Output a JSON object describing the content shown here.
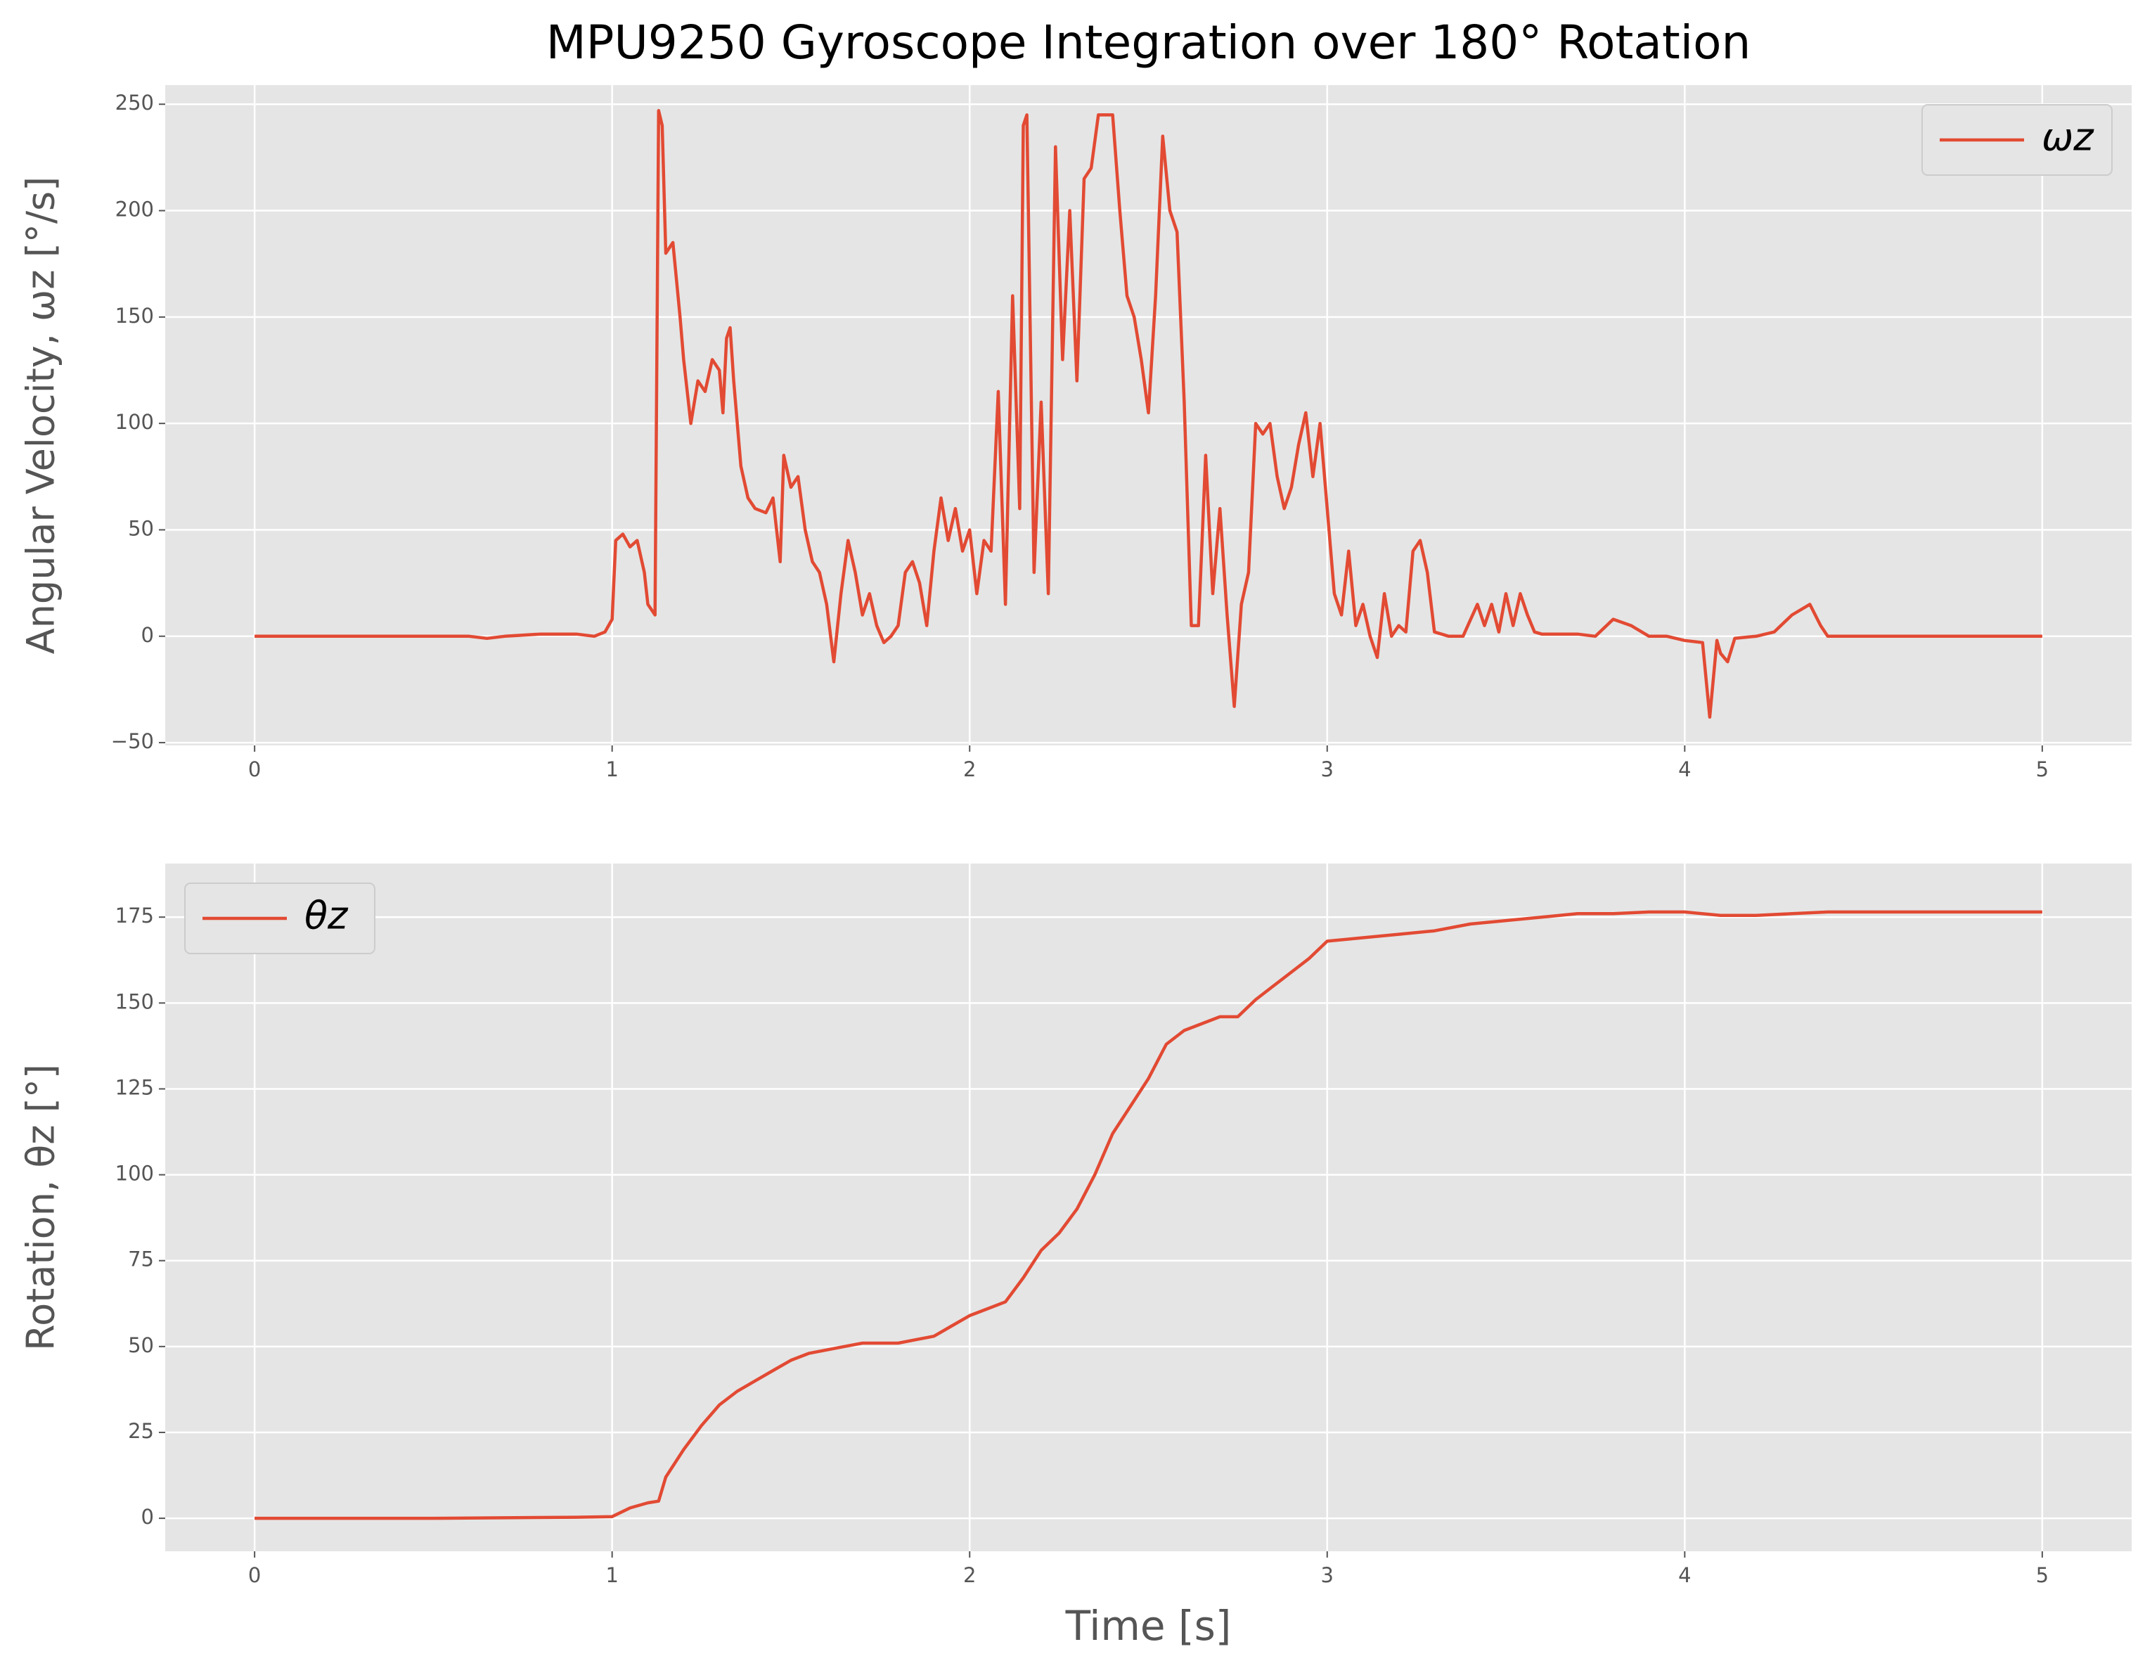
{
  "chart_data": [
    {
      "type": "line",
      "title": "MPU9250 Gyroscope Integration over 180° Rotation",
      "ylabel": "Angular Velocity, ωz [°/s]",
      "x": [
        0,
        0.1,
        0.2,
        0.3,
        0.4,
        0.5,
        0.6,
        0.65,
        0.7,
        0.8,
        0.9,
        0.95,
        0.98,
        1.0,
        1.01,
        1.03,
        1.05,
        1.07,
        1.09,
        1.1,
        1.12,
        1.13,
        1.14,
        1.15,
        1.17,
        1.19,
        1.2,
        1.22,
        1.24,
        1.26,
        1.28,
        1.3,
        1.31,
        1.32,
        1.33,
        1.34,
        1.36,
        1.38,
        1.4,
        1.43,
        1.45,
        1.47,
        1.48,
        1.5,
        1.52,
        1.54,
        1.56,
        1.58,
        1.6,
        1.62,
        1.64,
        1.66,
        1.68,
        1.7,
        1.72,
        1.74,
        1.76,
        1.78,
        1.8,
        1.82,
        1.84,
        1.86,
        1.88,
        1.9,
        1.92,
        1.94,
        1.96,
        1.98,
        2.0,
        2.02,
        2.04,
        2.06,
        2.08,
        2.1,
        2.12,
        2.14,
        2.15,
        2.16,
        2.18,
        2.2,
        2.22,
        2.24,
        2.26,
        2.28,
        2.3,
        2.32,
        2.34,
        2.36,
        2.38,
        2.4,
        2.42,
        2.44,
        2.46,
        2.48,
        2.5,
        2.52,
        2.54,
        2.56,
        2.58,
        2.6,
        2.62,
        2.64,
        2.66,
        2.68,
        2.7,
        2.72,
        2.74,
        2.76,
        2.78,
        2.8,
        2.82,
        2.84,
        2.86,
        2.88,
        2.9,
        2.92,
        2.94,
        2.96,
        2.98,
        3.0,
        3.02,
        3.04,
        3.06,
        3.08,
        3.1,
        3.12,
        3.14,
        3.16,
        3.18,
        3.2,
        3.22,
        3.24,
        3.26,
        3.28,
        3.3,
        3.34,
        3.38,
        3.42,
        3.44,
        3.46,
        3.48,
        3.5,
        3.52,
        3.54,
        3.56,
        3.58,
        3.6,
        3.7,
        3.75,
        3.8,
        3.85,
        3.9,
        3.95,
        4.0,
        4.05,
        4.07,
        4.09,
        4.1,
        4.12,
        4.14,
        4.2,
        4.25,
        4.3,
        4.35,
        4.38,
        4.4,
        4.5,
        4.6,
        4.7,
        4.8,
        4.9,
        5.0
      ],
      "series": [
        {
          "name": "ωz",
          "color": "#E24A33",
          "values": [
            0,
            0,
            0,
            0,
            0,
            0,
            0,
            -1,
            0,
            1,
            1,
            0,
            2,
            8,
            45,
            48,
            42,
            45,
            30,
            15,
            10,
            247,
            240,
            180,
            185,
            150,
            130,
            100,
            120,
            115,
            130,
            125,
            105,
            140,
            145,
            120,
            80,
            65,
            60,
            58,
            65,
            35,
            85,
            70,
            75,
            50,
            35,
            30,
            15,
            -12,
            20,
            45,
            30,
            10,
            20,
            5,
            -3,
            0,
            5,
            30,
            35,
            25,
            5,
            40,
            65,
            45,
            60,
            40,
            50,
            20,
            45,
            40,
            115,
            15,
            160,
            60,
            240,
            245,
            30,
            110,
            20,
            230,
            130,
            200,
            120,
            215,
            220,
            245,
            245,
            245,
            200,
            160,
            150,
            130,
            105,
            160,
            235,
            200,
            190,
            110,
            5,
            5,
            85,
            20,
            60,
            10,
            -33,
            15,
            30,
            100,
            95,
            100,
            75,
            60,
            70,
            90,
            105,
            75,
            100,
            60,
            20,
            10,
            40,
            5,
            15,
            0,
            -10,
            20,
            0,
            5,
            2,
            40,
            45,
            30,
            2,
            0,
            0,
            15,
            5,
            15,
            2,
            20,
            5,
            20,
            10,
            2,
            1,
            1,
            0,
            8,
            5,
            0,
            0,
            -2,
            -3,
            -38,
            -2,
            -8,
            -12,
            -1,
            0,
            2,
            10,
            15,
            5,
            0,
            0,
            0,
            0,
            0,
            0,
            0
          ]
        }
      ],
      "xlim": [
        -0.25,
        5.25
      ],
      "xticks": [
        0,
        1,
        2,
        3,
        4,
        5
      ],
      "ylim": [
        -51.3,
        259
      ],
      "yticks": [
        {
          "value": -50,
          "label": "−50"
        },
        0,
        50,
        100,
        150,
        200,
        250
      ],
      "grid": true,
      "legend": "upper right"
    },
    {
      "type": "line",
      "xlabel": "Time [s]",
      "ylabel": "Rotation, θz [°]",
      "x": [
        0,
        0.5,
        0.9,
        1.0,
        1.05,
        1.1,
        1.13,
        1.15,
        1.2,
        1.25,
        1.3,
        1.35,
        1.4,
        1.45,
        1.5,
        1.55,
        1.6,
        1.65,
        1.7,
        1.8,
        1.85,
        1.9,
        1.95,
        2.0,
        2.05,
        2.1,
        2.15,
        2.2,
        2.25,
        2.3,
        2.35,
        2.4,
        2.45,
        2.5,
        2.55,
        2.6,
        2.65,
        2.7,
        2.75,
        2.8,
        2.85,
        2.9,
        2.95,
        3.0,
        3.1,
        3.2,
        3.3,
        3.4,
        3.5,
        3.6,
        3.7,
        3.8,
        3.9,
        4.0,
        4.1,
        4.2,
        4.3,
        4.4,
        4.6,
        5.0
      ],
      "series": [
        {
          "name": "θz",
          "color": "#E24A33",
          "values": [
            0,
            0,
            0.3,
            0.5,
            3,
            4.5,
            5,
            12,
            20,
            27,
            33,
            37,
            40,
            43,
            46,
            48,
            49,
            50,
            51,
            51,
            52,
            53,
            56,
            59,
            61,
            63,
            70,
            78,
            83,
            90,
            100,
            112,
            120,
            128,
            138,
            142,
            144,
            146,
            146,
            151,
            155,
            159,
            163,
            168,
            169,
            170,
            171,
            173,
            174,
            175,
            176,
            176,
            176.5,
            176.5,
            175.5,
            175.5,
            176,
            176.5,
            176.5,
            176.5
          ]
        }
      ],
      "xlim": [
        -0.25,
        5.25
      ],
      "xticks": [
        0,
        1,
        2,
        3,
        4,
        5
      ],
      "ylim": [
        -9.6,
        190.6
      ],
      "yticks": [
        0,
        25,
        50,
        75,
        100,
        125,
        150,
        175
      ],
      "grid": true,
      "legend": "upper left"
    }
  ]
}
